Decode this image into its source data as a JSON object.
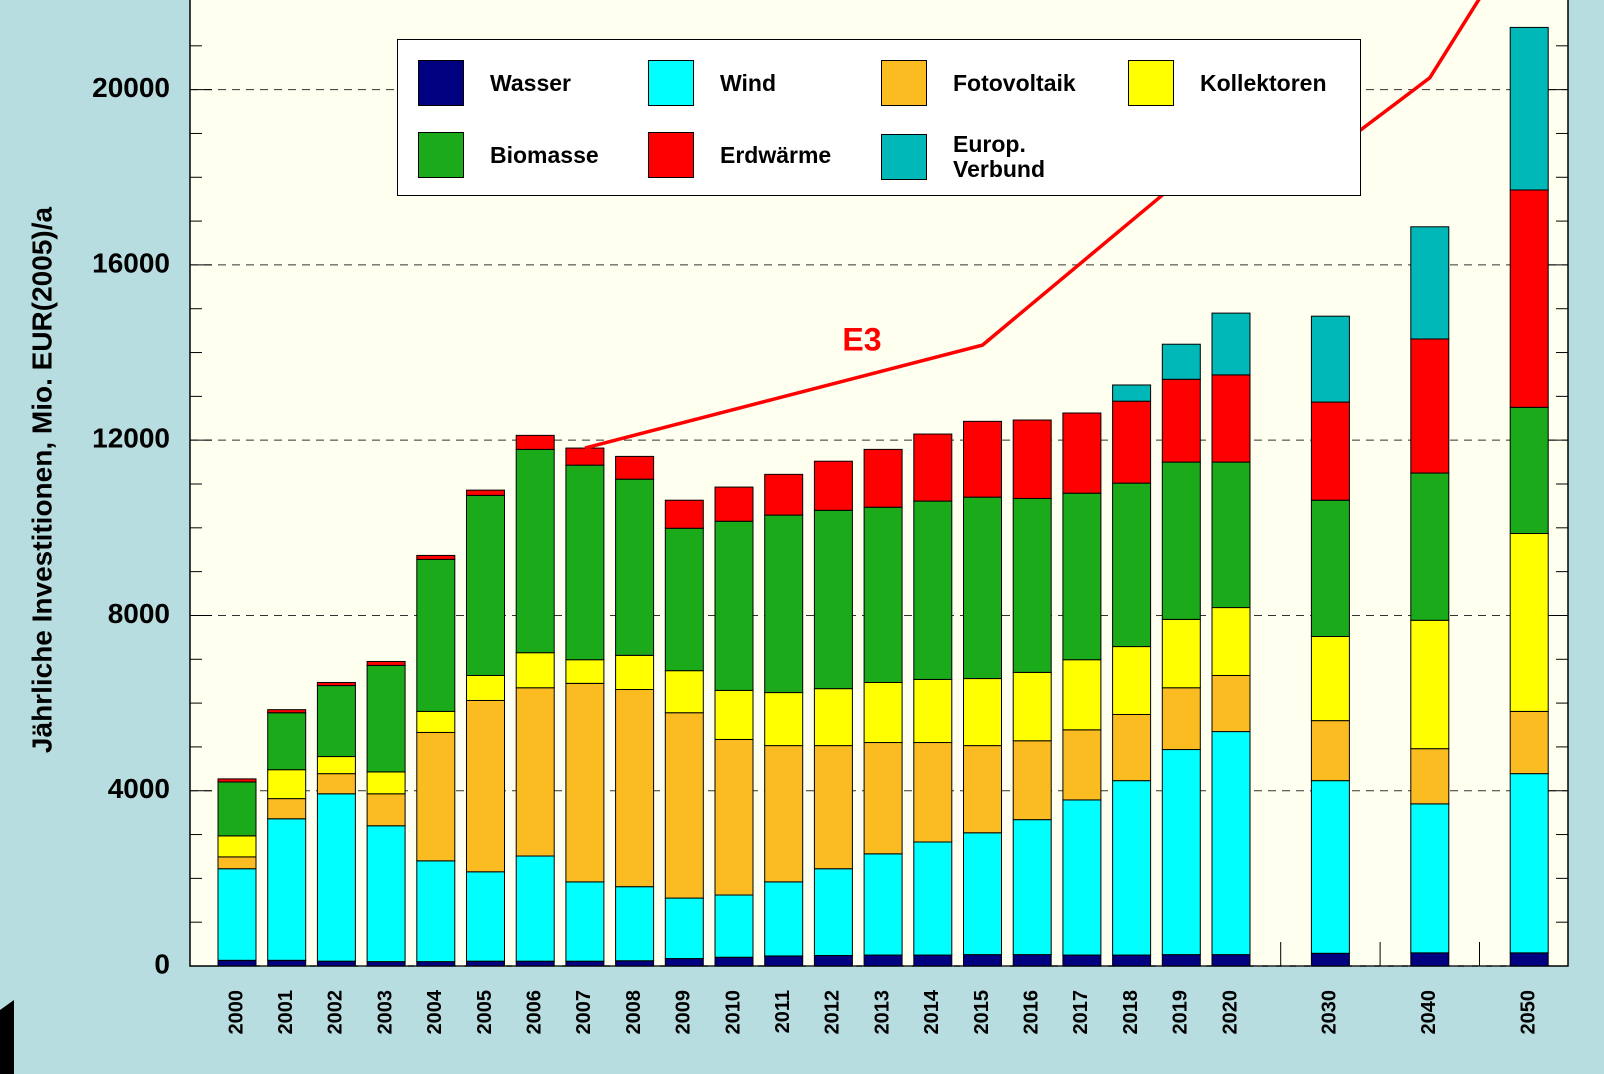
{
  "chart_data": {
    "type": "bar",
    "stacked": true,
    "y_label": "Jährliche Investitionen, Mio. EUR(2005)/a",
    "categories": [
      "2000",
      "2001",
      "2002",
      "2003",
      "2004",
      "2005",
      "2006",
      "2007",
      "2008",
      "2009",
      "2010",
      "2011",
      "2012",
      "2013",
      "2014",
      "2015",
      "2016",
      "2017",
      "2018",
      "2019",
      "2020",
      null,
      "2030",
      null,
      "2040",
      null,
      "2050"
    ],
    "series": [
      {
        "name": "Wasser",
        "color": "#000080",
        "values": [
          130,
          130,
          110,
          100,
          100,
          110,
          110,
          110,
          120,
          170,
          200,
          230,
          240,
          250,
          250,
          260,
          260,
          250,
          250,
          260,
          260,
          null,
          290,
          null,
          300,
          null,
          300
        ]
      },
      {
        "name": "Wind",
        "color": "#00ffff",
        "values": [
          2090,
          3230,
          3820,
          3100,
          2300,
          2040,
          2400,
          1810,
          1690,
          1380,
          1420,
          1690,
          1980,
          2310,
          2580,
          2780,
          3080,
          3540,
          3980,
          4680,
          5090,
          null,
          3940,
          null,
          3400,
          null,
          4090
        ]
      },
      {
        "name": "Fotovoltaik",
        "color": "#fbbc22",
        "values": [
          270,
          460,
          460,
          730,
          2930,
          3910,
          3840,
          4530,
          4500,
          4230,
          3550,
          3110,
          2810,
          2540,
          2270,
          1990,
          1800,
          1600,
          1510,
          1410,
          1280,
          null,
          1370,
          null,
          1260,
          null,
          1420
        ]
      },
      {
        "name": "Kollektoren",
        "color": "#ffff00",
        "values": [
          480,
          660,
          390,
          500,
          480,
          570,
          800,
          540,
          780,
          960,
          1120,
          1210,
          1300,
          1370,
          1440,
          1530,
          1560,
          1600,
          1550,
          1560,
          1550,
          null,
          1920,
          null,
          2930,
          null,
          4060
        ]
      },
      {
        "name": "Biomasse",
        "color": "#1aaa1a",
        "values": [
          1230,
          1300,
          1620,
          2430,
          3470,
          4110,
          4640,
          4440,
          4020,
          3250,
          3860,
          4050,
          4070,
          4000,
          4070,
          4140,
          3970,
          3800,
          3730,
          3590,
          3320,
          null,
          3110,
          null,
          3360,
          null,
          2880
        ]
      },
      {
        "name": "Erdwärme",
        "color": "#ff0000",
        "values": [
          70,
          70,
          70,
          90,
          90,
          120,
          320,
          390,
          520,
          640,
          780,
          930,
          1120,
          1320,
          1530,
          1730,
          1790,
          1830,
          1870,
          1890,
          1990,
          null,
          2240,
          null,
          3060,
          null,
          4960
        ]
      },
      {
        "name": "Europ.\nVerbund",
        "color": "#00b8b8",
        "values": [
          0,
          0,
          0,
          0,
          0,
          0,
          0,
          0,
          0,
          0,
          0,
          0,
          0,
          0,
          0,
          0,
          0,
          0,
          370,
          800,
          1410,
          null,
          1960,
          null,
          2560,
          null,
          3710
        ]
      }
    ],
    "line": {
      "name": "E3",
      "color": "#ff0000",
      "x": [
        "2007",
        "2015",
        "2020",
        "2030",
        "2040",
        "2050"
      ],
      "values": [
        11820,
        14170,
        18900,
        18560,
        20270,
        23890
      ]
    },
    "ylim": [
      0,
      22000
    ],
    "yticks": [
      0,
      4000,
      8000,
      12000,
      16000,
      20000
    ],
    "yminorticks": [
      1000,
      2000,
      3000,
      5000,
      6000,
      7000,
      9000,
      10000,
      11000,
      13000,
      14000,
      15000,
      17000,
      18000,
      19000,
      21000
    ],
    "grid": true
  }
}
